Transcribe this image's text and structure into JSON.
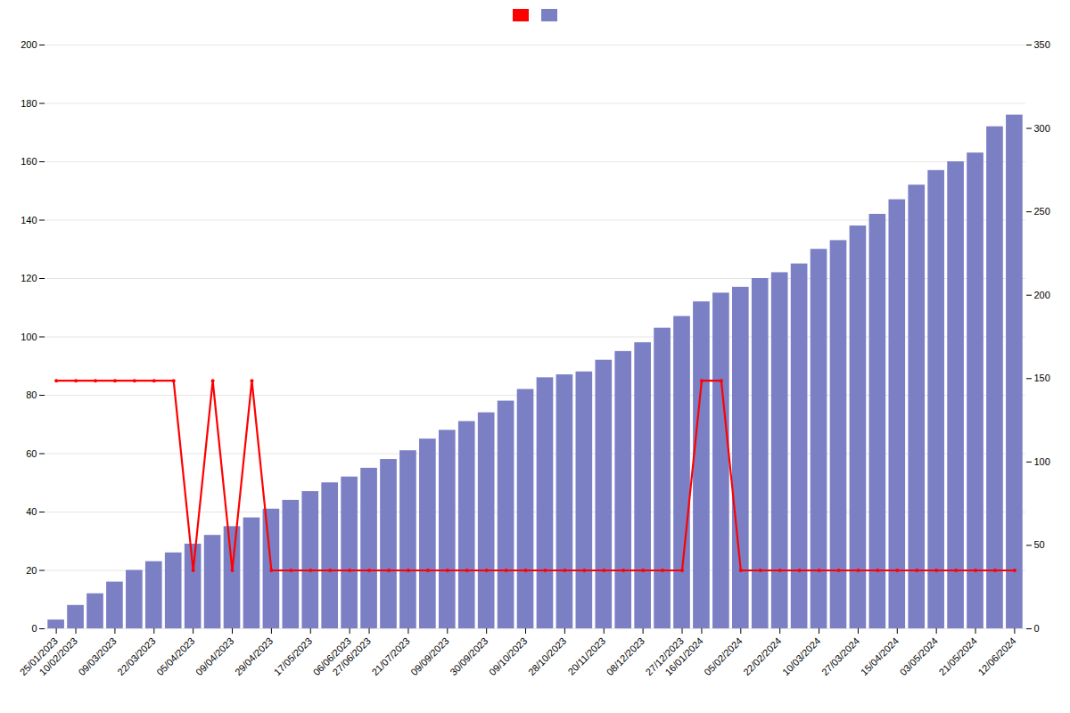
{
  "chart_data": {
    "type": "bar",
    "categories": [
      "25/01/2023",
      "10/02/2023",
      null,
      "09/03/2023",
      null,
      "22/03/2023",
      null,
      "05/04/2023",
      null,
      "09/04/2023",
      null,
      "29/04/2023",
      null,
      "17/05/2023",
      null,
      "06/06/2023",
      "27/06/2023",
      null,
      "21/07/2023",
      null,
      "09/09/2023",
      null,
      "30/09/2023",
      null,
      "09/10/2023",
      null,
      "28/10/2023",
      null,
      "20/11/2023",
      null,
      "08/12/2023",
      null,
      "27/12/2023",
      "16/01/2024",
      null,
      "05/02/2024",
      null,
      "22/02/2024",
      null,
      "10/03/2024",
      null,
      "27/03/2024",
      null,
      "15/04/2024",
      null,
      "03/05/2024",
      null,
      "21/05/2024",
      null,
      "12/06/2024"
    ],
    "series": [
      {
        "type": "bar",
        "color": "#7b7fc4",
        "values": [
          3,
          8,
          12,
          16,
          20,
          23,
          26,
          29,
          32,
          35,
          38,
          41,
          44,
          47,
          50,
          52,
          55,
          58,
          61,
          65,
          68,
          71,
          74,
          78,
          82,
          86,
          87,
          88,
          92,
          95,
          98,
          103,
          107,
          112,
          115,
          117,
          120,
          122,
          125,
          130,
          133,
          138,
          142,
          147,
          152,
          157,
          160,
          163,
          172,
          176
        ]
      },
      {
        "type": "line",
        "color": "#ff0000",
        "marker": "circle",
        "values": [
          85,
          85,
          85,
          85,
          85,
          85,
          85,
          20,
          85,
          20,
          85,
          20,
          20,
          20,
          20,
          20,
          20,
          20,
          20,
          20,
          20,
          20,
          20,
          20,
          20,
          20,
          20,
          20,
          20,
          20,
          20,
          20,
          20,
          85,
          85,
          20,
          20,
          20,
          20,
          20,
          20,
          20,
          20,
          20,
          20,
          20,
          20,
          20,
          20,
          20
        ]
      }
    ],
    "ylim": [
      0,
      200
    ],
    "yticks": [
      0,
      20,
      40,
      60,
      80,
      100,
      120,
      140,
      160,
      180,
      200
    ],
    "y2lim": [
      0,
      350
    ],
    "y2ticks": [
      0,
      50,
      100,
      150,
      200,
      250,
      300,
      350
    ],
    "grid": true,
    "legend": "top"
  }
}
